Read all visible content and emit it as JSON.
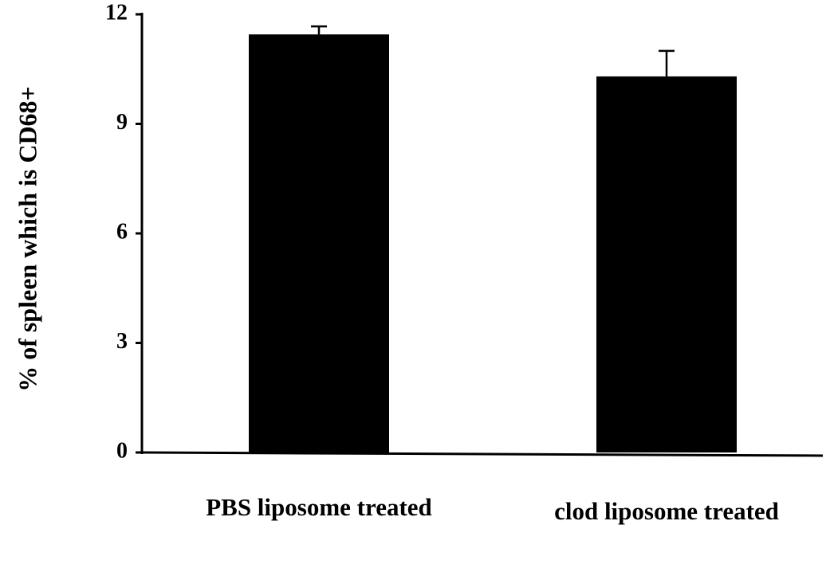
{
  "chart_data": {
    "type": "bar",
    "y_label": "% of spleen which is CD68+",
    "categories": [
      "PBS liposome treated",
      "clod liposome treated"
    ],
    "values": [
      11.45,
      10.3
    ],
    "errors": [
      0.22,
      0.7
    ],
    "color": "#000000",
    "ylim": [
      0,
      12
    ],
    "yticks": [
      0,
      3,
      6,
      9,
      12
    ],
    "grid": false
  }
}
